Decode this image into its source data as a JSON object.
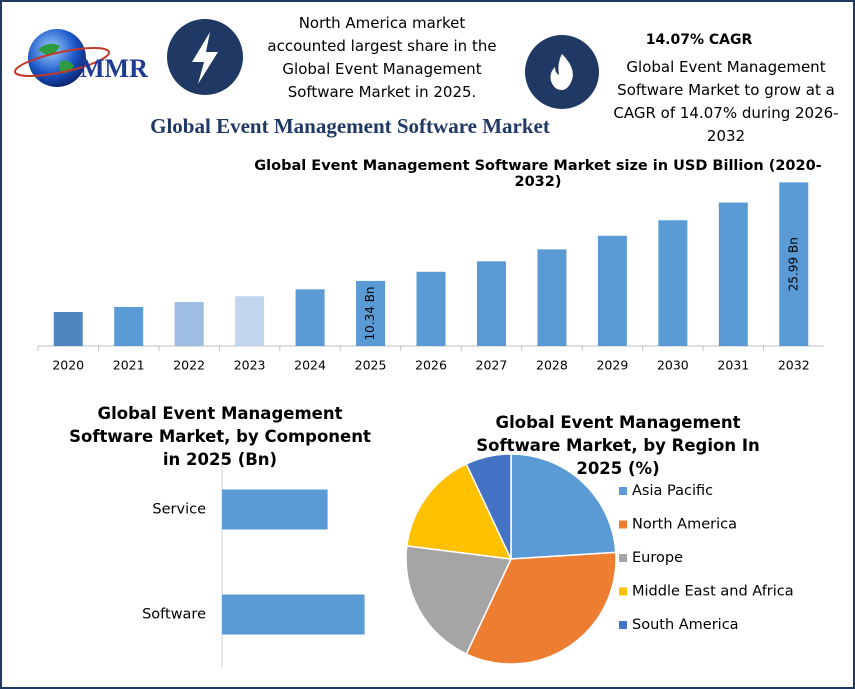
{
  "header": {
    "logo": "MMR",
    "callout_left": "North America market accounted largest share in the Global Event Management Software Market in 2025.",
    "cagr_title": "14.07% CAGR",
    "cagr_text": "Global Event Management Software Market to grow at a CAGR of 14.07% during 2026-2032",
    "title": "Global Event Management Software Market"
  },
  "chart_data": [
    {
      "type": "bar",
      "title": "Global Event Management Software Market size in USD Billion (2020-2032)",
      "categories": [
        "2020",
        "2021",
        "2022",
        "2023",
        "2024",
        "2025",
        "2026",
        "2027",
        "2028",
        "2029",
        "2030",
        "2031",
        "2032"
      ],
      "values": [
        5.4,
        6.2,
        7.0,
        7.9,
        9.0,
        10.34,
        11.79,
        13.45,
        15.35,
        17.51,
        19.97,
        22.78,
        25.99
      ],
      "value_labels": [
        null,
        null,
        null,
        null,
        null,
        "10.34 Bn",
        null,
        null,
        null,
        null,
        null,
        null,
        "25.99 Bn"
      ],
      "colors": [
        "#4f86c0",
        "#5b9bd5",
        "#9dbde4",
        "#c0d5ee",
        "#5b9bd5",
        "#5b9bd5",
        "#5b9bd5",
        "#5b9bd5",
        "#5b9bd5",
        "#5b9bd5",
        "#5b9bd5",
        "#5b9bd5",
        "#5b9bd5"
      ],
      "ylim": [
        0,
        27
      ]
    },
    {
      "type": "hbar",
      "title": "Global Event Management Software Market, by Component in 2025 (Bn)",
      "categories": [
        "Service",
        "Software"
      ],
      "values": [
        4.4,
        5.94
      ],
      "color": "#5b9bd5",
      "xlim": [
        0,
        7.5
      ]
    },
    {
      "type": "pie",
      "title": "Global Event Management Software Market, by Region In 2025 (%)",
      "categories": [
        "Asia Pacific",
        "North America",
        "Europe",
        "Middle East and Africa",
        "South America"
      ],
      "values": [
        24,
        33,
        20,
        16,
        7
      ],
      "colors": [
        "#5b9bd5",
        "#ed7d31",
        "#a5a5a5",
        "#ffc000",
        "#4472c4"
      ],
      "legend": "right"
    }
  ]
}
